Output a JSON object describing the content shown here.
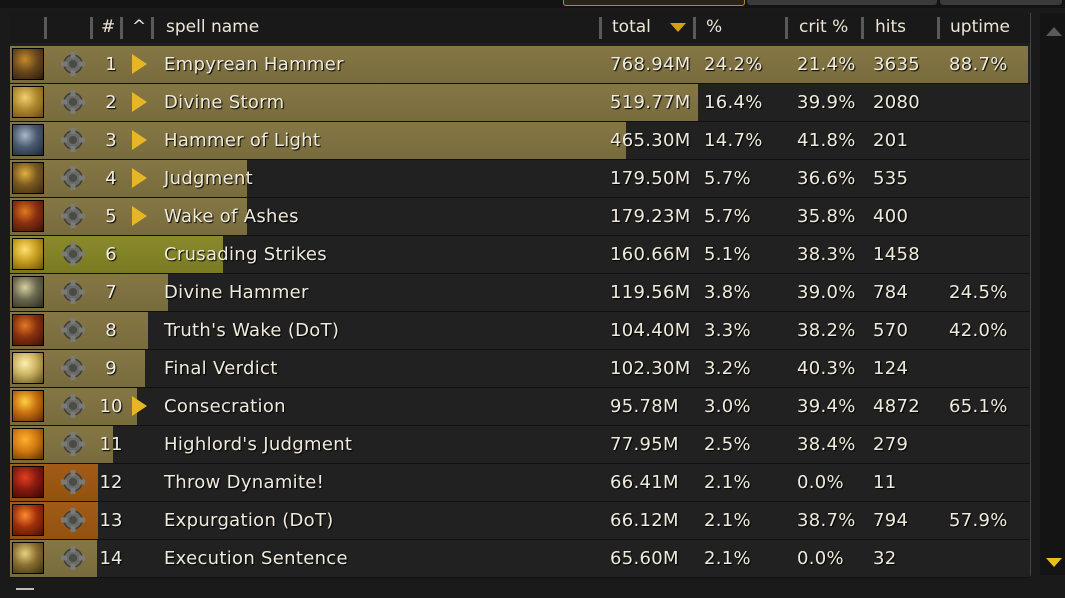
{
  "header": {
    "num": "#",
    "caret": "^",
    "spell_name": "spell name",
    "total": "total",
    "pct": "%",
    "crit": "crit %",
    "hits": "hits",
    "uptime": "uptime"
  },
  "colors": {
    "bar_gold": "#857745",
    "bar_green": "#8a8a2c",
    "bar_orange": "#a25b19",
    "expand_arrow": "#e7b627",
    "sort_arrow": "#d4a017"
  },
  "rows": [
    {
      "rank": "1",
      "name": "Empyrean Hammer",
      "total": "768.94M",
      "pct": "24.2%",
      "crit": "21.4%",
      "hits": "3635",
      "uptime": "88.7%",
      "expandable": true,
      "bar_fraction": 1.0,
      "bar_color": "gold",
      "icon": "hammer-figure-icon",
      "icon_colors": [
        "#6b4a1c",
        "#c48a2a",
        "#2a1a0a"
      ]
    },
    {
      "rank": "2",
      "name": "Divine Storm",
      "total": "519.77M",
      "pct": "16.4%",
      "crit": "39.9%",
      "hits": "2080",
      "uptime": "",
      "expandable": true,
      "bar_fraction": 0.676,
      "bar_color": "gold",
      "icon": "storm-swirl-icon",
      "icon_colors": [
        "#b08a30",
        "#f0d070",
        "#6a4a10"
      ]
    },
    {
      "rank": "3",
      "name": "Hammer of Light",
      "total": "465.30M",
      "pct": "14.7%",
      "crit": "41.8%",
      "hits": "201",
      "uptime": "",
      "expandable": true,
      "bar_fraction": 0.605,
      "bar_color": "gold",
      "icon": "light-hammer-icon",
      "icon_colors": [
        "#4a5a70",
        "#a9b8c8",
        "#1e2630"
      ]
    },
    {
      "rank": "4",
      "name": "Judgment",
      "total": "179.50M",
      "pct": "5.7%",
      "crit": "36.6%",
      "hits": "535",
      "uptime": "",
      "expandable": true,
      "bar_fraction": 0.233,
      "bar_color": "gold",
      "icon": "judgment-hammer-icon",
      "icon_colors": [
        "#7a5a20",
        "#e2b040",
        "#3a2a10"
      ]
    },
    {
      "rank": "5",
      "name": "Wake of Ashes",
      "total": "179.23M",
      "pct": "5.7%",
      "crit": "35.8%",
      "hits": "400",
      "uptime": "",
      "expandable": true,
      "bar_fraction": 0.233,
      "bar_color": "gold",
      "icon": "ashes-flame-icon",
      "icon_colors": [
        "#8a3010",
        "#e07a20",
        "#3a1206"
      ]
    },
    {
      "rank": "6",
      "name": "Crusading Strikes",
      "total": "160.66M",
      "pct": "5.1%",
      "crit": "38.3%",
      "hits": "1458",
      "uptime": "",
      "expandable": false,
      "bar_fraction": 0.209,
      "bar_color": "green",
      "icon": "golden-strike-icon",
      "icon_colors": [
        "#c8a020",
        "#ffe070",
        "#6a5008"
      ]
    },
    {
      "rank": "7",
      "name": "Divine Hammer",
      "total": "119.56M",
      "pct": "3.8%",
      "crit": "39.0%",
      "hits": "784",
      "uptime": "24.5%",
      "expandable": false,
      "bar_fraction": 0.155,
      "bar_color": "gold",
      "icon": "divine-hammer-icon",
      "icon_colors": [
        "#6a6a50",
        "#d8d0a0",
        "#2a2a20"
      ]
    },
    {
      "rank": "8",
      "name": "Truth's Wake (DoT)",
      "total": "104.40M",
      "pct": "3.3%",
      "crit": "38.2%",
      "hits": "570",
      "uptime": "42.0%",
      "expandable": false,
      "bar_fraction": 0.136,
      "bar_color": "gold",
      "icon": "ashes-flame-icon",
      "icon_colors": [
        "#8a3010",
        "#e07a20",
        "#3a1206"
      ]
    },
    {
      "rank": "9",
      "name": "Final Verdict",
      "total": "102.30M",
      "pct": "3.2%",
      "crit": "40.3%",
      "hits": "124",
      "uptime": "",
      "expandable": false,
      "bar_fraction": 0.133,
      "bar_color": "gold",
      "icon": "verdict-spiral-icon",
      "icon_colors": [
        "#c8b060",
        "#fff0b0",
        "#5a4a18"
      ]
    },
    {
      "rank": "10",
      "name": "Consecration",
      "total": "95.78M",
      "pct": "3.0%",
      "crit": "39.4%",
      "hits": "4872",
      "uptime": "65.1%",
      "expandable": true,
      "bar_fraction": 0.125,
      "bar_color": "gold",
      "icon": "consecration-flame-icon",
      "icon_colors": [
        "#c87010",
        "#ffd040",
        "#5a2a04"
      ]
    },
    {
      "rank": "11",
      "name": "Highlord's Judgment",
      "total": "77.95M",
      "pct": "2.5%",
      "crit": "38.4%",
      "hits": "279",
      "uptime": "",
      "expandable": false,
      "bar_fraction": 0.101,
      "bar_color": "gold",
      "icon": "highlord-sun-icon",
      "icon_colors": [
        "#d07a10",
        "#ffb030",
        "#5a3004"
      ]
    },
    {
      "rank": "12",
      "name": "Throw Dynamite!",
      "total": "66.41M",
      "pct": "2.1%",
      "crit": "0.0%",
      "hits": "11",
      "uptime": "",
      "expandable": false,
      "bar_fraction": 0.086,
      "bar_color": "orange",
      "icon": "dynamite-icon",
      "icon_colors": [
        "#8a1a10",
        "#e04020",
        "#3a0804"
      ]
    },
    {
      "rank": "13",
      "name": "Expurgation (DoT)",
      "total": "66.12M",
      "pct": "2.1%",
      "crit": "38.7%",
      "hits": "794",
      "uptime": "57.9%",
      "expandable": false,
      "bar_fraction": 0.086,
      "bar_color": "orange",
      "icon": "expurgation-blade-icon",
      "icon_colors": [
        "#a0300c",
        "#ff8a30",
        "#4a1004"
      ]
    },
    {
      "rank": "14",
      "name": "Execution Sentence",
      "total": "65.60M",
      "pct": "2.1%",
      "crit": "0.0%",
      "hits": "32",
      "uptime": "",
      "expandable": false,
      "bar_fraction": 0.085,
      "bar_color": "gold",
      "icon": "execution-tome-icon",
      "icon_colors": [
        "#8a7030",
        "#e8d080",
        "#3a2e10"
      ]
    }
  ]
}
